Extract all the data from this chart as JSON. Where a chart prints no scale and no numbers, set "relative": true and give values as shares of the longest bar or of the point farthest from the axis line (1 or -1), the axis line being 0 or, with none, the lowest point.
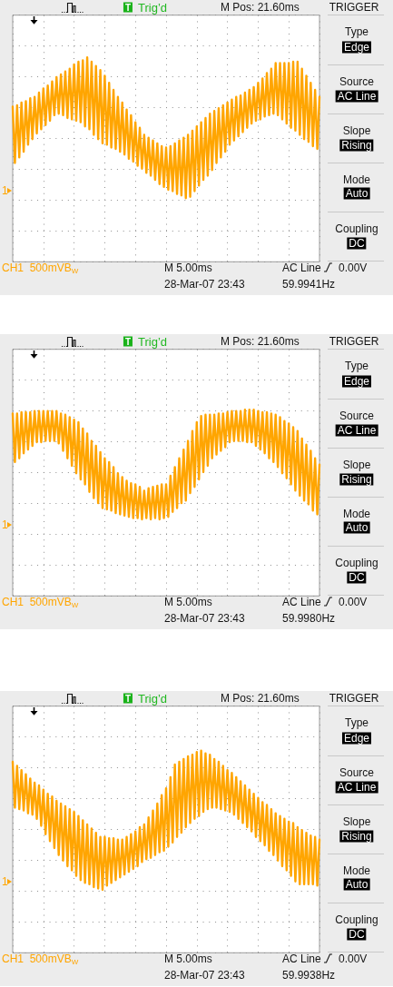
{
  "chart_data": [
    {
      "type": "line",
      "relative": true,
      "grid": true,
      "marker": "none",
      "line_style": "solid",
      "categories": [
        null,
        null,
        null,
        null,
        null,
        null,
        null,
        null,
        null,
        null,
        null,
        null,
        null,
        null,
        null,
        null,
        null,
        null,
        null,
        null,
        null,
        null,
        null,
        null,
        null,
        null,
        null,
        null,
        null,
        null,
        null,
        null,
        null,
        null,
        null,
        null,
        null,
        null,
        null,
        null,
        null,
        null,
        null,
        null,
        null,
        null,
        null,
        null,
        null,
        null,
        null,
        null,
        null,
        null,
        null,
        null,
        null,
        null,
        null,
        null,
        null,
        null,
        null,
        null,
        null,
        null,
        null,
        null,
        null,
        null,
        null,
        null,
        null,
        null,
        null,
        null,
        null,
        null,
        null,
        null,
        null,
        null,
        null,
        null,
        null,
        null,
        null,
        null,
        null,
        null,
        null,
        null,
        null,
        null,
        null,
        null,
        null,
        null,
        null,
        null,
        null,
        null,
        null,
        null,
        null,
        null,
        null,
        null,
        null,
        null,
        null,
        null,
        null,
        null,
        null,
        null,
        null,
        null,
        null,
        null,
        null,
        null,
        null,
        null,
        null,
        null,
        null,
        null,
        null,
        null,
        null,
        null,
        null,
        null,
        null,
        null,
        null,
        null,
        null,
        null,
        null
      ],
      "series": [
        {
          "color": "#ffa500",
          "values": [
            0.65,
            0.25,
            0.66,
            0.29,
            0.68,
            0.33,
            0.69,
            0.38,
            0.71,
            0.42,
            0.72,
            0.46,
            0.75,
            0.49,
            0.78,
            0.52,
            0.8,
            0.55,
            0.83,
            0.59,
            0.86,
            0.6,
            0.88,
            0.59,
            0.9,
            0.57,
            0.92,
            0.56,
            0.95,
            0.55,
            0.97,
            0.54,
            0.98,
            0.51,
            1.0,
            0.49,
            0.97,
            0.45,
            0.94,
            0.42,
            0.91,
            0.39,
            0.87,
            0.38,
            0.82,
            0.36,
            0.77,
            0.35,
            0.72,
            0.33,
            0.68,
            0.31,
            0.63,
            0.28,
            0.59,
            0.26,
            0.54,
            0.23,
            0.5,
            0.21,
            0.45,
            0.18,
            0.43,
            0.16,
            0.41,
            0.13,
            0.39,
            0.1,
            0.37,
            0.08,
            0.36,
            0.06,
            0.37,
            0.05,
            0.39,
            0.03,
            0.41,
            0.02,
            0.43,
            0.0,
            0.45,
            0.01,
            0.48,
            0.05,
            0.51,
            0.09,
            0.54,
            0.13,
            0.57,
            0.16,
            0.6,
            0.2,
            0.62,
            0.25,
            0.64,
            0.29,
            0.66,
            0.33,
            0.68,
            0.38,
            0.7,
            0.41,
            0.72,
            0.44,
            0.73,
            0.47,
            0.75,
            0.5,
            0.77,
            0.53,
            0.79,
            0.55,
            0.82,
            0.56,
            0.85,
            0.58,
            0.89,
            0.59,
            0.92,
            0.6,
            0.96,
            0.59,
            0.96,
            0.56,
            0.96,
            0.53,
            0.96,
            0.5,
            0.97,
            0.48,
            0.97,
            0.45,
            0.92,
            0.42,
            0.87,
            0.4,
            0.82,
            0.37,
            0.77,
            0.35,
            0.72
          ]
        }
      ],
      "annotations": [
        "T",
        "Trig’d",
        "M Pos: 21.60ms",
        "TRIGGER",
        "Type",
        "Edge",
        "Source",
        "AC Line",
        "Slope",
        "Rising",
        "Mode",
        "Auto",
        "Coupling",
        "DC",
        "1",
        "CH1  500mVB$_{W}$",
        "M 5.00ms",
        "AC Line",
        "0.00V",
        "28-Mar-07 23:43",
        "59.9941Hz"
      ]
    },
    {
      "type": "line",
      "relative": true,
      "grid": true,
      "marker": "none",
      "line_style": "solid",
      "categories": [
        null,
        null,
        null,
        null,
        null,
        null,
        null,
        null,
        null,
        null,
        null,
        null,
        null,
        null,
        null,
        null,
        null,
        null,
        null,
        null,
        null,
        null,
        null,
        null,
        null,
        null,
        null,
        null,
        null,
        null,
        null,
        null,
        null,
        null,
        null,
        null,
        null,
        null,
        null,
        null,
        null,
        null,
        null,
        null,
        null,
        null,
        null,
        null,
        null,
        null,
        null,
        null,
        null,
        null,
        null,
        null,
        null,
        null,
        null,
        null,
        null,
        null,
        null,
        null,
        null,
        null,
        null,
        null,
        null,
        null,
        null,
        null,
        null,
        null,
        null,
        null,
        null,
        null,
        null,
        null,
        null,
        null,
        null,
        null,
        null,
        null,
        null,
        null,
        null,
        null,
        null,
        null,
        null,
        null,
        null,
        null,
        null,
        null,
        null,
        null,
        null,
        null,
        null,
        null,
        null,
        null,
        null,
        null,
        null,
        null,
        null,
        null,
        null,
        null,
        null,
        null,
        null,
        null,
        null,
        null,
        null,
        null,
        null,
        null,
        null,
        null,
        null,
        null,
        null,
        null,
        null,
        null,
        null,
        null,
        null,
        null,
        null,
        null,
        null,
        null,
        null
      ],
      "series": [
        {
          "color": "#ffa500",
          "values": [
            0.97,
            0.58,
            0.97,
            0.61,
            0.98,
            0.65,
            0.98,
            0.68,
            0.98,
            0.71,
            0.99,
            0.74,
            0.99,
            0.74,
            0.99,
            0.75,
            0.99,
            0.75,
            0.99,
            0.75,
            0.99,
            0.73,
            0.97,
            0.67,
            0.96,
            0.61,
            0.94,
            0.55,
            0.92,
            0.49,
            0.9,
            0.44,
            0.85,
            0.4,
            0.81,
            0.34,
            0.75,
            0.29,
            0.71,
            0.25,
            0.66,
            0.21,
            0.61,
            0.2,
            0.58,
            0.19,
            0.54,
            0.17,
            0.49,
            0.16,
            0.46,
            0.15,
            0.43,
            0.14,
            0.41,
            0.13,
            0.4,
            0.13,
            0.38,
            0.12,
            0.35,
            0.13,
            0.37,
            0.12,
            0.38,
            0.13,
            0.39,
            0.12,
            0.4,
            0.13,
            0.4,
            0.14,
            0.47,
            0.18,
            0.54,
            0.21,
            0.61,
            0.25,
            0.68,
            0.27,
            0.75,
            0.33,
            0.83,
            0.38,
            0.9,
            0.44,
            0.95,
            0.5,
            0.96,
            0.55,
            0.96,
            0.61,
            0.96,
            0.64,
            0.97,
            0.67,
            0.97,
            0.7,
            0.98,
            0.74,
            0.99,
            0.75,
            0.99,
            0.75,
            0.99,
            0.75,
            1.0,
            0.74,
            1.0,
            0.74,
            1.0,
            0.71,
            0.99,
            0.68,
            0.98,
            0.65,
            0.98,
            0.61,
            0.97,
            0.58,
            0.96,
            0.54,
            0.94,
            0.49,
            0.91,
            0.45,
            0.89,
            0.4,
            0.86,
            0.35,
            0.83,
            0.31,
            0.77,
            0.27,
            0.72,
            0.24,
            0.67,
            0.19,
            0.61,
            0.16,
            0.56
          ]
        }
      ],
      "annotations": [
        "T",
        "Trig’d",
        "M Pos: 21.60ms",
        "TRIGGER",
        "Type",
        "Edge",
        "Source",
        "AC Line",
        "Slope",
        "Rising",
        "Mode",
        "Auto",
        "Coupling",
        "DC",
        "1",
        "CH1  500mVB$_{W}$",
        "M 5.00ms",
        "AC Line",
        "0.00V",
        "28-Mar-07 23:43",
        "59.9980Hz"
      ]
    },
    {
      "type": "line",
      "relative": true,
      "grid": true,
      "marker": "none",
      "line_style": "solid",
      "categories": [
        null,
        null,
        null,
        null,
        null,
        null,
        null,
        null,
        null,
        null,
        null,
        null,
        null,
        null,
        null,
        null,
        null,
        null,
        null,
        null,
        null,
        null,
        null,
        null,
        null,
        null,
        null,
        null,
        null,
        null,
        null,
        null,
        null,
        null,
        null,
        null,
        null,
        null,
        null,
        null,
        null,
        null,
        null,
        null,
        null,
        null,
        null,
        null,
        null,
        null,
        null,
        null,
        null,
        null,
        null,
        null,
        null,
        null,
        null,
        null,
        null,
        null,
        null,
        null,
        null,
        null,
        null,
        null,
        null,
        null,
        null,
        null,
        null,
        null,
        null,
        null,
        null,
        null,
        null,
        null,
        null,
        null,
        null,
        null,
        null,
        null,
        null,
        null,
        null,
        null,
        null,
        null,
        null,
        null,
        null,
        null,
        null,
        null,
        null,
        null,
        null,
        null,
        null,
        null,
        null,
        null,
        null,
        null,
        null,
        null,
        null,
        null,
        null,
        null,
        null,
        null,
        null,
        null,
        null,
        null,
        null,
        null,
        null,
        null,
        null,
        null,
        null,
        null,
        null,
        null,
        null,
        null,
        null,
        null,
        null,
        null,
        null,
        null,
        null,
        null,
        null
      ],
      "series": [
        {
          "color": "#ffa500",
          "values": [
            0.92,
            0.59,
            0.89,
            0.58,
            0.86,
            0.57,
            0.83,
            0.55,
            0.8,
            0.54,
            0.77,
            0.51,
            0.75,
            0.46,
            0.72,
            0.4,
            0.69,
            0.35,
            0.67,
            0.3,
            0.64,
            0.25,
            0.62,
            0.21,
            0.6,
            0.17,
            0.58,
            0.14,
            0.56,
            0.1,
            0.53,
            0.07,
            0.5,
            0.05,
            0.47,
            0.04,
            0.44,
            0.02,
            0.41,
            0.01,
            0.38,
            0.0,
            0.38,
            0.03,
            0.37,
            0.05,
            0.37,
            0.07,
            0.36,
            0.09,
            0.36,
            0.11,
            0.38,
            0.13,
            0.4,
            0.15,
            0.42,
            0.17,
            0.45,
            0.2,
            0.47,
            0.22,
            0.52,
            0.23,
            0.57,
            0.25,
            0.62,
            0.27,
            0.68,
            0.28,
            0.73,
            0.31,
            0.81,
            0.34,
            0.9,
            0.38,
            0.92,
            0.41,
            0.94,
            0.45,
            0.96,
            0.48,
            0.97,
            0.51,
            0.99,
            0.53,
            1.0,
            0.56,
            0.98,
            0.58,
            0.97,
            0.59,
            0.94,
            0.59,
            0.92,
            0.58,
            0.89,
            0.57,
            0.86,
            0.56,
            0.84,
            0.54,
            0.81,
            0.51,
            0.78,
            0.48,
            0.75,
            0.45,
            0.72,
            0.42,
            0.69,
            0.38,
            0.66,
            0.35,
            0.63,
            0.32,
            0.61,
            0.28,
            0.58,
            0.25,
            0.55,
            0.21,
            0.53,
            0.17,
            0.51,
            0.14,
            0.49,
            0.1,
            0.48,
            0.06,
            0.45,
            0.04,
            0.43,
            0.04,
            0.41,
            0.04,
            0.39,
            0.04,
            0.38,
            0.03,
            0.36
          ]
        }
      ],
      "annotations": [
        "T",
        "Trig’d",
        "M Pos: 21.60ms",
        "TRIGGER",
        "Type",
        "Edge",
        "Source",
        "AC Line",
        "Slope",
        "Rising",
        "Mode",
        "Auto",
        "Coupling",
        "DC",
        "1",
        "CH1  500mVB$_{W}$",
        "M 5.00ms",
        "AC Line",
        "0.00V",
        "28-Mar-07 23:43",
        "59.9938Hz"
      ]
    }
  ]
}
